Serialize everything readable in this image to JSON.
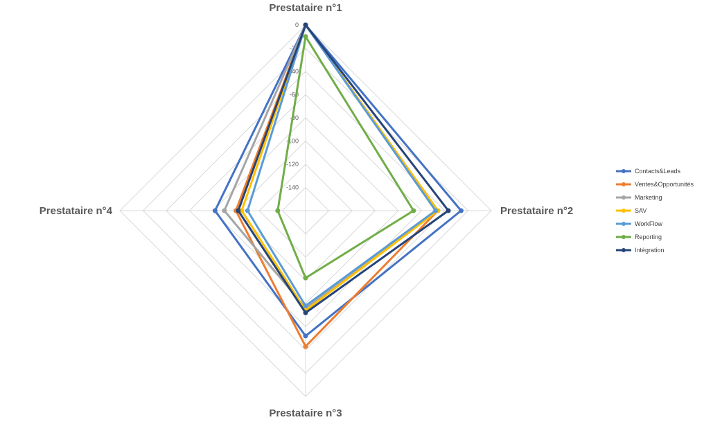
{
  "chart_data": {
    "type": "radar",
    "axes": [
      "Prestataire n°1",
      "Prestataire n°2",
      "Prestataire n°3",
      "Prestataire n°4"
    ],
    "scale": {
      "min": -160,
      "max": 0,
      "step": 20
    },
    "tick_labels": [
      "0",
      "-20",
      "-40",
      "-60",
      "-80",
      "-100",
      "-120",
      "-140"
    ],
    "grid": true,
    "legend_position": "right",
    "series": [
      {
        "name": "Contacts&Leads",
        "color": "#4472C4",
        "values": [
          0,
          -26,
          -52,
          -82
        ]
      },
      {
        "name": "Ventes&Opportunités",
        "color": "#ED7D31",
        "values": [
          0,
          -46,
          -43,
          -100
        ]
      },
      {
        "name": "Marketing",
        "color": "#A5A5A5",
        "values": [
          0,
          -46,
          -76,
          -90
        ]
      },
      {
        "name": "SAV",
        "color": "#FFC000",
        "values": [
          0,
          -46,
          -74,
          -105
        ]
      },
      {
        "name": "WorkFlow",
        "color": "#5B9BD5",
        "values": [
          0,
          -48,
          -78,
          -110
        ]
      },
      {
        "name": "Reporting",
        "color": "#70AD47",
        "values": [
          -10,
          -67,
          -102,
          -136
        ]
      },
      {
        "name": "Intégration",
        "color": "#264478",
        "values": [
          0,
          -37,
          -72,
          -102
        ]
      }
    ]
  }
}
